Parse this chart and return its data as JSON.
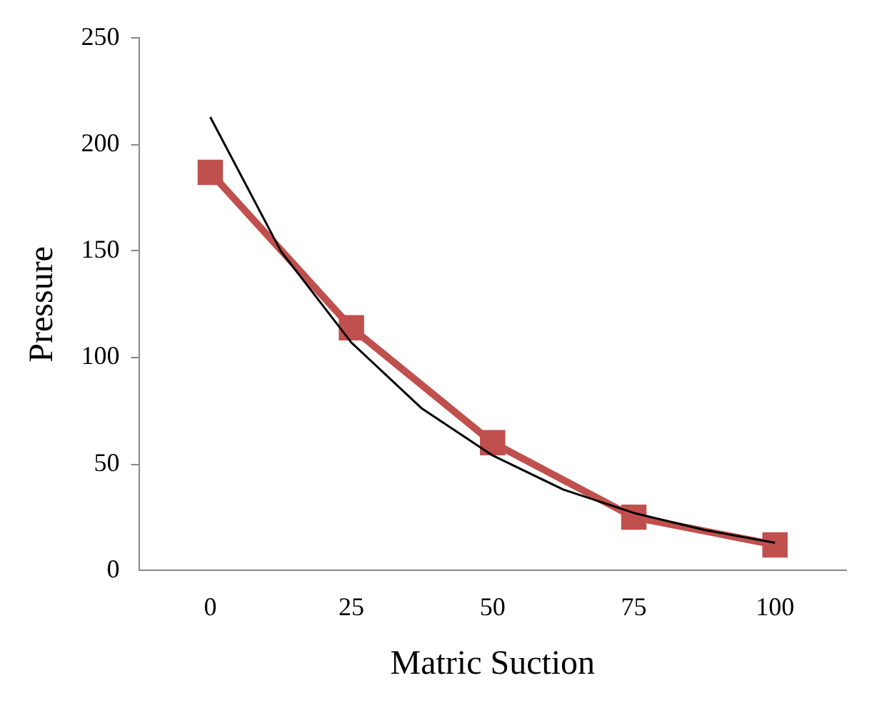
{
  "chart_data": {
    "type": "line",
    "xlabel": "Matric Suction",
    "ylabel": "Pressure",
    "x": [
      0,
      25,
      50,
      75,
      100
    ],
    "xlim": [
      -12.5,
      112.5
    ],
    "xticks": [
      0,
      25,
      50,
      75,
      100
    ],
    "ylim": [
      0,
      250
    ],
    "yticks": [
      0,
      50,
      100,
      150,
      200,
      250
    ],
    "grid": false,
    "legend": false,
    "marker": "square",
    "line_style": "solid",
    "series": [
      {
        "color": "#c0504d",
        "values": [
          187,
          114,
          60,
          25,
          12
        ]
      },
      {
        "type": "line",
        "color": "#000000",
        "marker": "none",
        "x": [
          0,
          12.5,
          25,
          37.5,
          50,
          62.5,
          75,
          87.5,
          100
        ],
        "values": [
          213,
          150,
          107,
          76,
          54,
          38,
          27,
          19,
          13
        ]
      }
    ]
  }
}
